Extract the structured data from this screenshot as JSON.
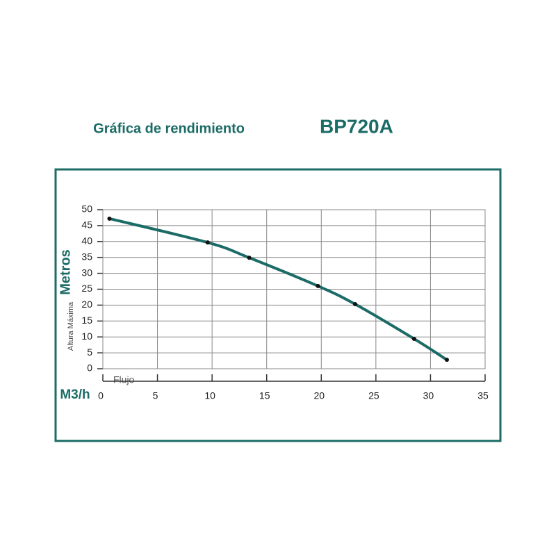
{
  "chart_data": {
    "type": "line",
    "title": "Gráfica de rendimiento",
    "title_model": "BP720A",
    "y_label_secondary": "Altura Máxima",
    "y_label": "Metros",
    "x_label": "Flujo",
    "x_unit": "M3/h",
    "x": [
      0.6,
      9.6,
      13.4,
      19.7,
      23.1,
      28.5,
      31.5
    ],
    "series": [
      {
        "name": "BP720A",
        "color": "#1b6b66",
        "values": [
          47.2,
          39.7,
          34.9,
          26.0,
          20.3,
          9.4,
          2.8
        ]
      }
    ],
    "xlim": [
      0,
      35
    ],
    "ylim": [
      0,
      50
    ],
    "xticks": [
      0,
      5,
      10,
      15,
      20,
      25,
      30,
      35
    ],
    "yticks": [
      0,
      5,
      10,
      15,
      20,
      25,
      30,
      35,
      40,
      45,
      50
    ],
    "grid": true,
    "frame_color": "#1b6b66",
    "marker_color": "#111111"
  }
}
